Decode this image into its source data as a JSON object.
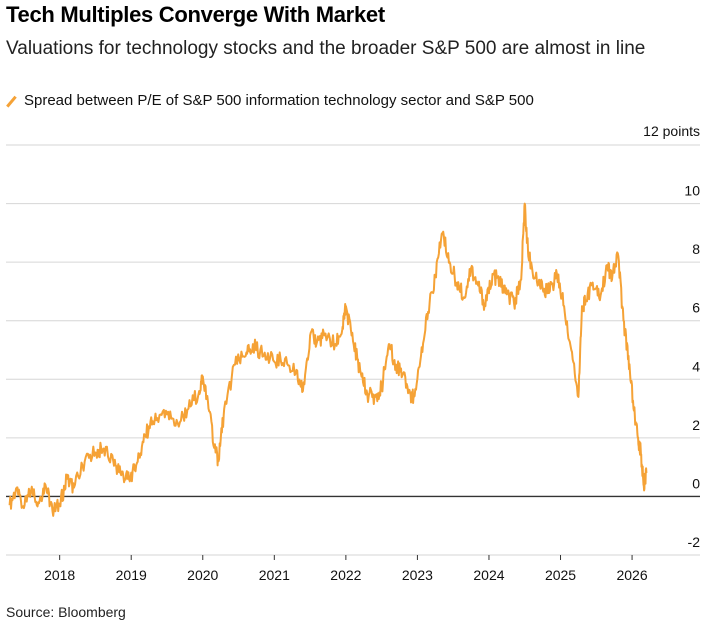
{
  "title": "Tech Multiples Converge With Market",
  "subtitle": "Valuations for technology stocks and the broader S&P 500 are almost in line",
  "source": "Source: Bloomberg",
  "colors": {
    "series": "#f5a236",
    "grid": "#d6d6d6",
    "zero": "#333333"
  },
  "chart_data": {
    "type": "line",
    "title": "Tech Multiples Converge With Market",
    "subtitle": "Valuations for technology stocks and the broader S&P 500 are almost in line",
    "xlabel": "",
    "ylabel": "",
    "y_unit_label": "12 points",
    "ylim": [
      -2,
      12
    ],
    "xlim": [
      2017.25,
      2026.6
    ],
    "grid": "horizontal",
    "legend_position": "top-left",
    "y_ticks": [
      -2,
      0,
      2,
      4,
      6,
      8,
      10
    ],
    "y_tick_labels": [
      "-2",
      "0",
      "2",
      "4",
      "6",
      "8",
      "10"
    ],
    "x_ticks": [
      2018,
      2019,
      2020,
      2021,
      2022,
      2023,
      2024,
      2025,
      2026
    ],
    "x_tick_labels": [
      "2018",
      "2019",
      "2020",
      "2021",
      "2022",
      "2023",
      "2024",
      "2025",
      "2026"
    ],
    "series": [
      {
        "name": "Spread between P/E of S&P 500 information technology sector and S&P 500",
        "x": [
          2017.3,
          2017.4,
          2017.5,
          2017.6,
          2017.7,
          2017.8,
          2017.9,
          2018.0,
          2018.1,
          2018.2,
          2018.35,
          2018.5,
          2018.6,
          2018.75,
          2018.85,
          2018.95,
          2019.05,
          2019.15,
          2019.25,
          2019.35,
          2019.5,
          2019.65,
          2019.8,
          2019.95,
          2020.0,
          2020.08,
          2020.18,
          2020.22,
          2020.3,
          2020.45,
          2020.6,
          2020.7,
          2020.85,
          2021.0,
          2021.15,
          2021.3,
          2021.4,
          2021.5,
          2021.6,
          2021.7,
          2021.85,
          2021.95,
          2022.0,
          2022.1,
          2022.2,
          2022.3,
          2022.4,
          2022.5,
          2022.6,
          2022.7,
          2022.8,
          2022.9,
          2022.95,
          2023.05,
          2023.15,
          2023.25,
          2023.35,
          2023.45,
          2023.55,
          2023.65,
          2023.75,
          2023.85,
          2023.95,
          2024.05,
          2024.15,
          2024.25,
          2024.35,
          2024.45,
          2024.5,
          2024.55,
          2024.65,
          2024.75,
          2024.85,
          2024.95,
          2025.05,
          2025.15,
          2025.25,
          2025.3,
          2025.35,
          2025.45,
          2025.55,
          2025.65,
          2025.72,
          2025.8,
          2025.88,
          2025.95,
          2026.02,
          2026.08,
          2026.12,
          2026.16,
          2026.2
        ],
        "values": [
          -0.3,
          0.3,
          -0.4,
          0.2,
          -0.2,
          0.4,
          -0.5,
          -0.3,
          0.6,
          0.3,
          1.2,
          1.5,
          1.6,
          1.2,
          0.8,
          0.6,
          0.9,
          1.7,
          2.4,
          2.6,
          2.8,
          2.5,
          3.0,
          3.6,
          4.1,
          3.0,
          1.5,
          1.2,
          3.0,
          4.5,
          4.8,
          5.2,
          4.8,
          4.6,
          4.7,
          4.2,
          3.6,
          5.5,
          5.3,
          5.5,
          5.2,
          5.7,
          6.5,
          5.3,
          4.3,
          3.5,
          3.4,
          3.7,
          5.2,
          4.5,
          4.2,
          3.5,
          3.4,
          4.8,
          6.3,
          7.5,
          9.0,
          8.0,
          7.3,
          6.8,
          7.8,
          7.2,
          6.5,
          7.6,
          7.3,
          6.9,
          6.6,
          7.4,
          10.0,
          8.2,
          7.5,
          7.1,
          7.0,
          7.6,
          6.5,
          5.0,
          3.4,
          6.5,
          6.7,
          7.3,
          6.7,
          7.9,
          7.4,
          8.3,
          6.0,
          4.8,
          3.0,
          2.0,
          1.6,
          0.4,
          0.8
        ]
      }
    ]
  }
}
